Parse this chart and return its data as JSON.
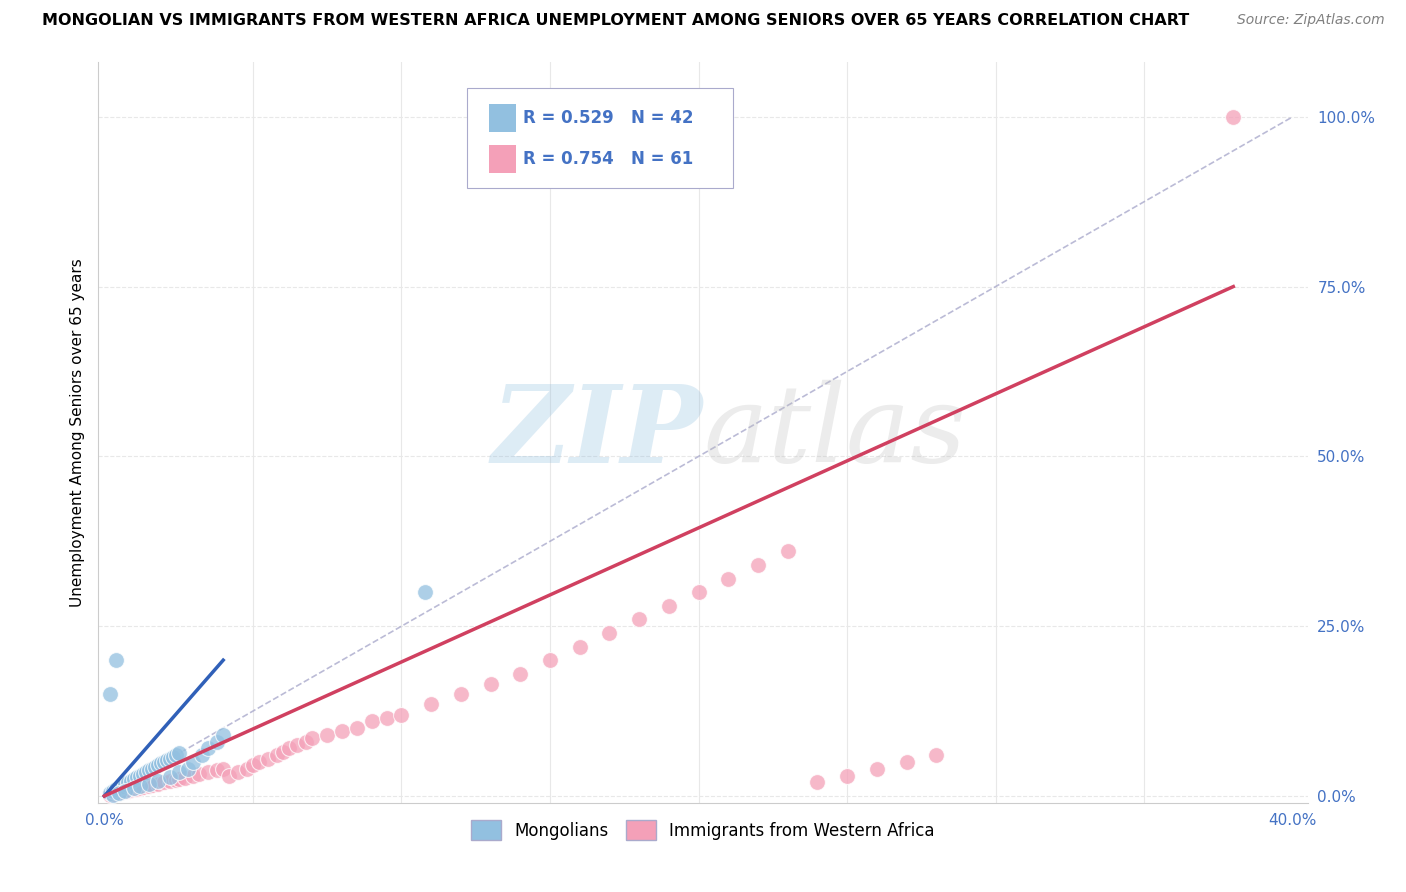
{
  "title": "MONGOLIAN VS IMMIGRANTS FROM WESTERN AFRICA UNEMPLOYMENT AMONG SENIORS OVER 65 YEARS CORRELATION CHART",
  "source": "Source: ZipAtlas.com",
  "ylabel": "Unemployment Among Seniors over 65 years",
  "xlim": [
    -0.002,
    0.405
  ],
  "ylim": [
    -0.01,
    1.08
  ],
  "yticks": [
    0.0,
    0.25,
    0.5,
    0.75,
    1.0
  ],
  "yticklabels": [
    "0.0%",
    "25.0%",
    "50.0%",
    "75.0%",
    "100.0%"
  ],
  "xtick_major": [
    0.0,
    0.4
  ],
  "xtick_major_labels": [
    "0.0%",
    "40.0%"
  ],
  "xtick_minor": [
    0.05,
    0.1,
    0.15,
    0.2,
    0.25,
    0.3,
    0.35
  ],
  "mongolian_R": 0.529,
  "mongolian_N": 42,
  "western_africa_R": 0.754,
  "western_africa_N": 61,
  "mongolian_color": "#92c0e0",
  "western_africa_color": "#f4a0b8",
  "mongolian_line_color": "#3060b8",
  "western_africa_line_color": "#d04060",
  "ref_line_color": "#aaaacc",
  "legend_mongolian": "Mongolians",
  "legend_western": "Immigrants from Western Africa",
  "background_color": "#ffffff",
  "grid_color": "#e8e8e8",
  "tick_color": "#4472C4",
  "mongolian_x": [
    0.002,
    0.003,
    0.004,
    0.005,
    0.006,
    0.007,
    0.008,
    0.009,
    0.01,
    0.011,
    0.012,
    0.013,
    0.014,
    0.015,
    0.016,
    0.017,
    0.018,
    0.019,
    0.02,
    0.021,
    0.022,
    0.023,
    0.024,
    0.025,
    0.003,
    0.005,
    0.007,
    0.01,
    0.012,
    0.015,
    0.018,
    0.022,
    0.025,
    0.028,
    0.03,
    0.033,
    0.035,
    0.038,
    0.04,
    0.002,
    0.004,
    0.108
  ],
  "mongolian_y": [
    0.005,
    0.008,
    0.01,
    0.012,
    0.015,
    0.018,
    0.02,
    0.022,
    0.025,
    0.028,
    0.03,
    0.033,
    0.035,
    0.038,
    0.04,
    0.043,
    0.045,
    0.048,
    0.05,
    0.053,
    0.055,
    0.058,
    0.06,
    0.063,
    0.002,
    0.005,
    0.008,
    0.012,
    0.015,
    0.018,
    0.022,
    0.028,
    0.035,
    0.04,
    0.05,
    0.06,
    0.07,
    0.08,
    0.09,
    0.15,
    0.2,
    0.3
  ],
  "western_africa_x": [
    0.002,
    0.003,
    0.005,
    0.006,
    0.007,
    0.008,
    0.009,
    0.01,
    0.011,
    0.012,
    0.013,
    0.015,
    0.016,
    0.018,
    0.02,
    0.022,
    0.024,
    0.025,
    0.027,
    0.03,
    0.032,
    0.035,
    0.038,
    0.04,
    0.042,
    0.045,
    0.048,
    0.05,
    0.052,
    0.055,
    0.058,
    0.06,
    0.062,
    0.065,
    0.068,
    0.07,
    0.075,
    0.08,
    0.085,
    0.09,
    0.095,
    0.1,
    0.11,
    0.12,
    0.13,
    0.14,
    0.15,
    0.16,
    0.17,
    0.18,
    0.19,
    0.2,
    0.21,
    0.22,
    0.23,
    0.24,
    0.25,
    0.26,
    0.27,
    0.28,
    0.38
  ],
  "western_africa_y": [
    0.002,
    0.003,
    0.005,
    0.006,
    0.007,
    0.008,
    0.009,
    0.01,
    0.011,
    0.012,
    0.013,
    0.015,
    0.016,
    0.018,
    0.02,
    0.022,
    0.024,
    0.025,
    0.027,
    0.03,
    0.032,
    0.035,
    0.038,
    0.04,
    0.03,
    0.035,
    0.04,
    0.045,
    0.05,
    0.055,
    0.06,
    0.065,
    0.07,
    0.075,
    0.08,
    0.085,
    0.09,
    0.095,
    0.1,
    0.11,
    0.115,
    0.12,
    0.135,
    0.15,
    0.165,
    0.18,
    0.2,
    0.22,
    0.24,
    0.26,
    0.28,
    0.3,
    0.32,
    0.34,
    0.36,
    0.02,
    0.03,
    0.04,
    0.05,
    0.06,
    1.0
  ],
  "mongolian_trend_x0": 0.0,
  "mongolian_trend_y0": 0.0,
  "mongolian_trend_x1": 0.04,
  "mongolian_trend_y1": 0.2,
  "western_trend_x0": 0.0,
  "western_trend_y0": 0.0,
  "western_trend_x1": 0.38,
  "western_trend_y1": 0.75
}
